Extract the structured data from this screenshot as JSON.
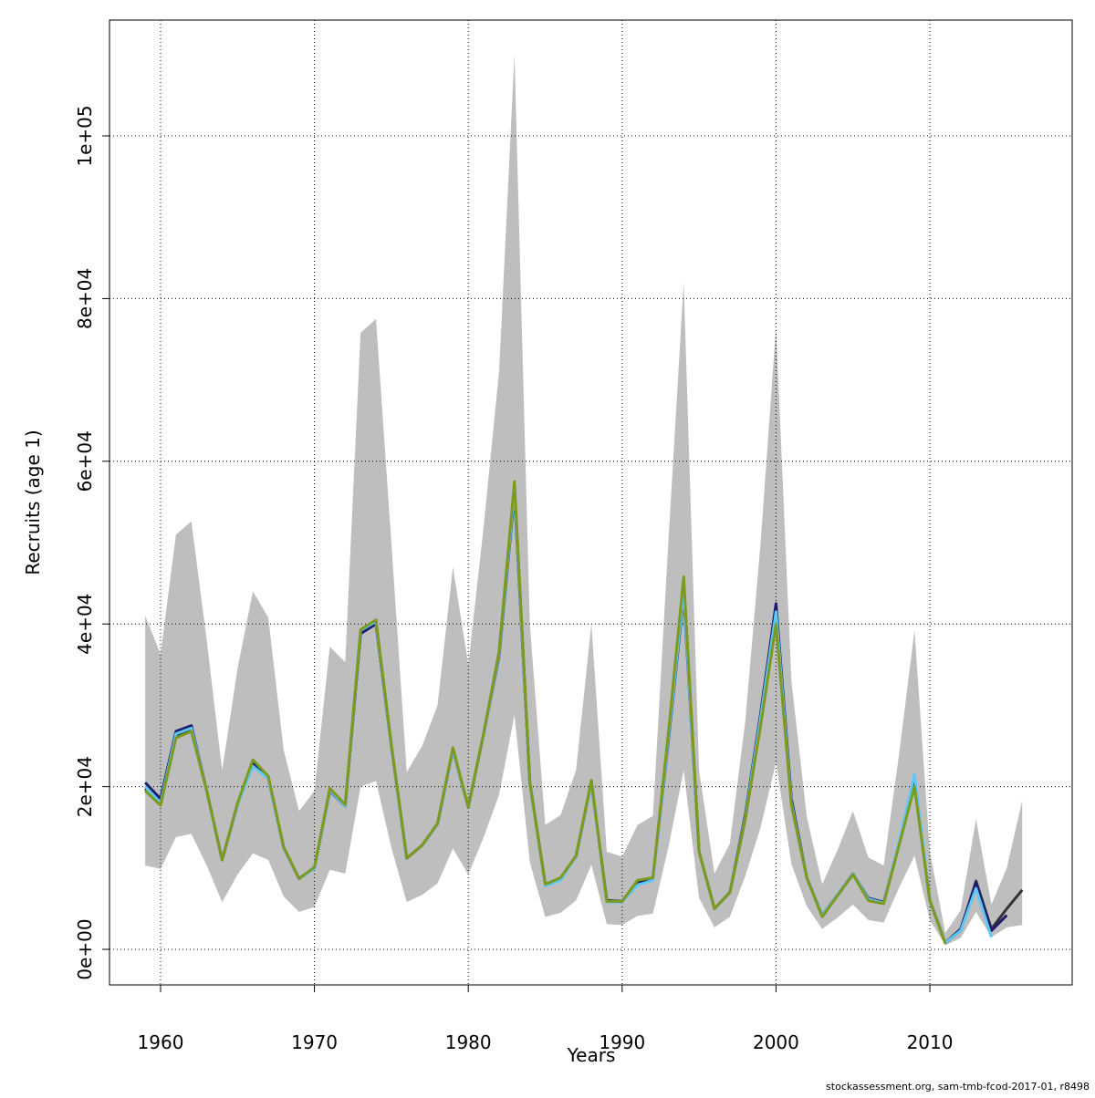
{
  "chart_data": {
    "type": "line",
    "x_label": "Years",
    "y_label": "Recruits (age 1)",
    "footer": "stockassessment.org, sam-tmb-fcod-2017-01, r8498",
    "x": [
      1959,
      1960,
      1961,
      1962,
      1963,
      1964,
      1965,
      1966,
      1967,
      1968,
      1969,
      1970,
      1971,
      1972,
      1973,
      1974,
      1975,
      1976,
      1977,
      1978,
      1979,
      1980,
      1981,
      1982,
      1983,
      1984,
      1985,
      1986,
      1987,
      1988,
      1989,
      1990,
      1991,
      1992,
      1993,
      1994,
      1995,
      1996,
      1997,
      1998,
      1999,
      2000,
      2001,
      2002,
      2003,
      2004,
      2005,
      2006,
      2007,
      2008,
      2009,
      2010,
      2011,
      2012,
      2013,
      2014,
      2015,
      2016
    ],
    "ci_upper": [
      41000,
      36300,
      51000,
      52600,
      38000,
      22000,
      34500,
      44000,
      40800,
      24500,
      17000,
      19500,
      37200,
      35300,
      75800,
      77500,
      50000,
      21800,
      25000,
      30000,
      47000,
      35000,
      52000,
      71000,
      110000,
      40000,
      15300,
      16500,
      22000,
      40000,
      12000,
      11400,
      15300,
      16400,
      50000,
      82000,
      22000,
      9300,
      13000,
      28000,
      50000,
      76500,
      33000,
      16300,
      8000,
      12200,
      17000,
      11300,
      10300,
      24000,
      39200,
      12000,
      2000,
      4800,
      16000,
      5500,
      10000,
      18300
    ],
    "ci_lower": [
      10300,
      9900,
      13800,
      14200,
      10300,
      5800,
      9200,
      11800,
      11000,
      6500,
      4600,
      5200,
      9800,
      9300,
      20000,
      20700,
      12500,
      5800,
      6700,
      8100,
      12400,
      9200,
      13800,
      19000,
      28800,
      10700,
      4000,
      4500,
      6000,
      10400,
      3100,
      3000,
      4100,
      4400,
      12500,
      22000,
      6300,
      2700,
      4000,
      9000,
      15000,
      23000,
      10500,
      5300,
      2500,
      3900,
      5500,
      3600,
      3300,
      7600,
      11500,
      3600,
      500,
      1400,
      4600,
      1500,
      2700,
      3000
    ],
    "band_color": "#bebebe",
    "series": [
      {
        "color": "#333333",
        "values": [
          19800,
          17900,
          26200,
          27000,
          19500,
          11000,
          17800,
          23000,
          21200,
          12500,
          8700,
          10000,
          19600,
          17600,
          39000,
          40200,
          25000,
          11200,
          12800,
          15400,
          24500,
          17500,
          26500,
          36500,
          57000,
          20500,
          8000,
          8700,
          11400,
          20500,
          6000,
          5900,
          8300,
          8700,
          26000,
          45000,
          12000,
          5000,
          7000,
          16000,
          28000,
          41000,
          18000,
          8800,
          4200,
          6700,
          9300,
          6200,
          5700,
          13000,
          20300,
          6000,
          800,
          2300,
          8400,
          2500,
          5000,
          7300
        ]
      },
      {
        "color": "#1c1c70",
        "values": [
          20500,
          18500,
          26800,
          27500,
          19500,
          11000,
          17800,
          22800,
          21000,
          12500,
          8700,
          10000,
          19500,
          17600,
          38800,
          40000,
          25000,
          11200,
          12800,
          15400,
          24500,
          17500,
          26500,
          36000,
          56000,
          20500,
          8000,
          8700,
          11400,
          20500,
          6000,
          5900,
          8300,
          8700,
          25500,
          43500,
          12000,
          5000,
          7000,
          16500,
          29000,
          42500,
          18500,
          8800,
          4200,
          6700,
          9300,
          6300,
          5800,
          13000,
          20500,
          6000,
          800,
          2500,
          8200,
          2300,
          4200,
          null
        ]
      },
      {
        "color": "#5ec8f2",
        "values": [
          20000,
          18000,
          26500,
          27200,
          19500,
          11000,
          17800,
          22500,
          21000,
          12500,
          8700,
          9900,
          19600,
          17600,
          39200,
          40300,
          25000,
          11200,
          12800,
          15400,
          24500,
          17500,
          26500,
          36200,
          56500,
          20500,
          7800,
          8500,
          11400,
          20500,
          5800,
          5800,
          7900,
          8500,
          25800,
          44000,
          12000,
          5000,
          7000,
          16200,
          28500,
          41500,
          18000,
          8800,
          4200,
          6700,
          9300,
          6200,
          5700,
          13200,
          21500,
          6000,
          800,
          2300,
          7500,
          1500,
          null,
          null
        ]
      },
      {
        "color": "#7c9a1e",
        "values": [
          19500,
          17700,
          26000,
          26800,
          19500,
          11000,
          18000,
          23300,
          21300,
          12600,
          8700,
          10100,
          19800,
          17800,
          39300,
          40500,
          25200,
          11200,
          12800,
          15500,
          24800,
          17500,
          26600,
          36500,
          57500,
          20500,
          8000,
          8800,
          11500,
          20800,
          5900,
          5900,
          8500,
          8800,
          26500,
          45800,
          12000,
          5000,
          7000,
          16000,
          27500,
          40000,
          17700,
          8800,
          4000,
          6600,
          9200,
          6000,
          5600,
          12800,
          20000,
          6000,
          700,
          null,
          null,
          null,
          null,
          null
        ]
      }
    ],
    "xlim": [
      1956.68,
      2019.25
    ],
    "ylim": [
      -4372,
      114238
    ],
    "xticks": [
      1960,
      1970,
      1980,
      1990,
      2000,
      2010
    ],
    "yticks": [
      {
        "value": 0,
        "label": "0e+00"
      },
      {
        "value": 20000,
        "label": "2e+04"
      },
      {
        "value": 40000,
        "label": "4e+04"
      },
      {
        "value": 60000,
        "label": "6e+04"
      },
      {
        "value": 80000,
        "label": "8e+04"
      },
      {
        "value": 100000,
        "label": "1e+05"
      }
    ],
    "grid": true
  }
}
